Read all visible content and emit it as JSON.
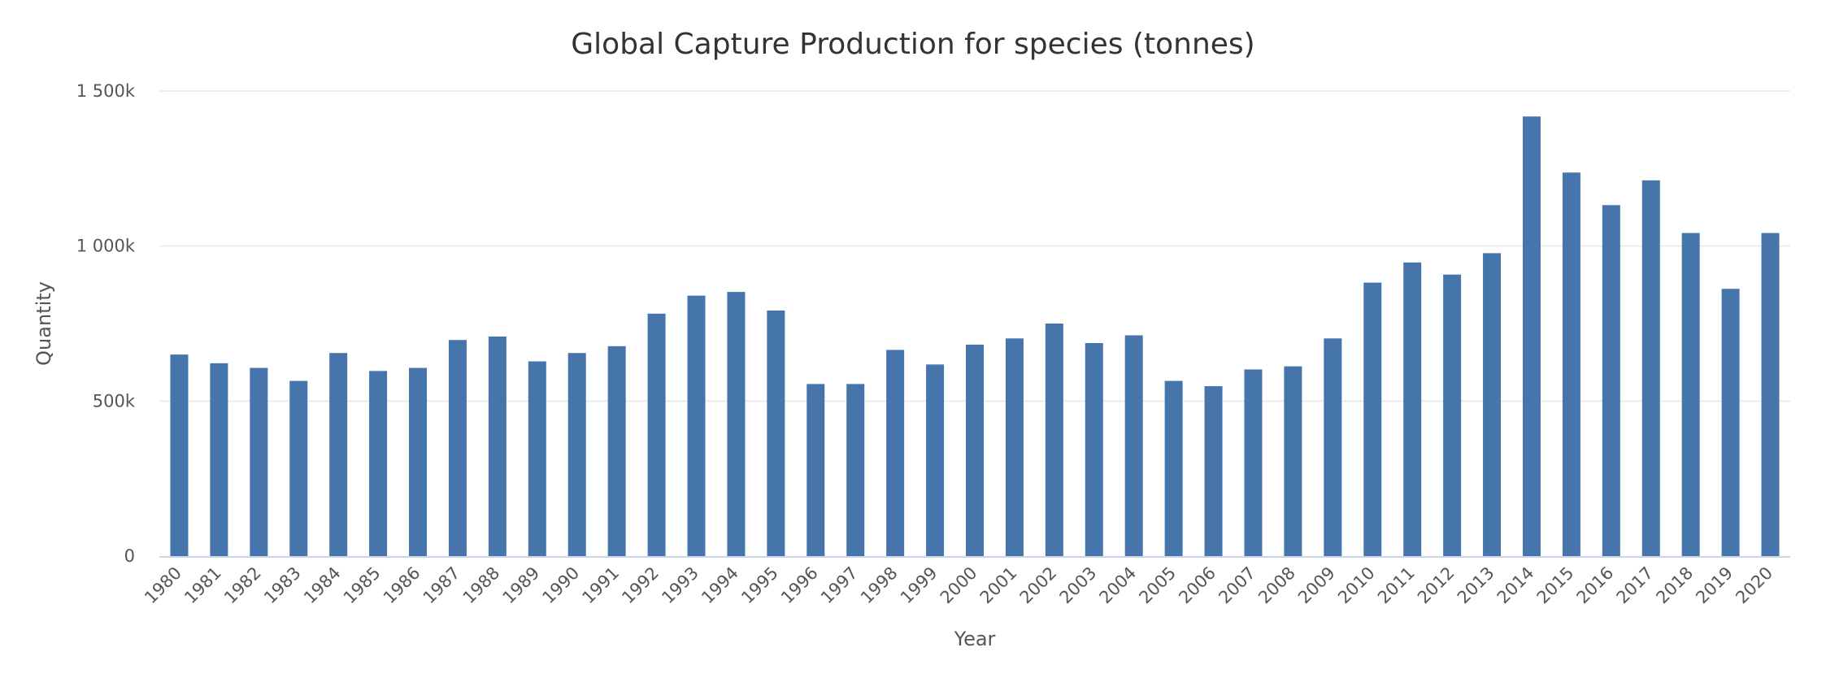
{
  "chart_data": {
    "type": "bar",
    "title": "Global Capture Production for species (tonnes)",
    "xlabel": "Year",
    "ylabel": "Quantity",
    "ylim": [
      0,
      1500000
    ],
    "yticks": [
      0,
      500000,
      1000000,
      1500000
    ],
    "ytick_labels": [
      "0",
      "500k",
      "1 000k",
      "1 500k"
    ],
    "grid": true,
    "bar_color": "#4575ab",
    "categories": [
      "1980",
      "1981",
      "1982",
      "1983",
      "1984",
      "1985",
      "1986",
      "1987",
      "1988",
      "1989",
      "1990",
      "1991",
      "1992",
      "1993",
      "1994",
      "1995",
      "1996",
      "1997",
      "1998",
      "1999",
      "2000",
      "2001",
      "2002",
      "2003",
      "2004",
      "2005",
      "2006",
      "2007",
      "2008",
      "2009",
      "2010",
      "2011",
      "2012",
      "2013",
      "2014",
      "2015",
      "2016",
      "2017",
      "2018",
      "2019",
      "2020"
    ],
    "values": [
      650000,
      622000,
      607000,
      565000,
      655000,
      597000,
      607000,
      697000,
      708000,
      628000,
      655000,
      677000,
      782000,
      840000,
      852000,
      792000,
      555000,
      555000,
      665000,
      618000,
      682000,
      702000,
      750000,
      687000,
      712000,
      565000,
      548000,
      602000,
      612000,
      702000,
      882000,
      947000,
      908000,
      977000,
      1418000,
      1237000,
      1132000,
      1212000,
      1042000,
      862000,
      1042000
    ]
  }
}
